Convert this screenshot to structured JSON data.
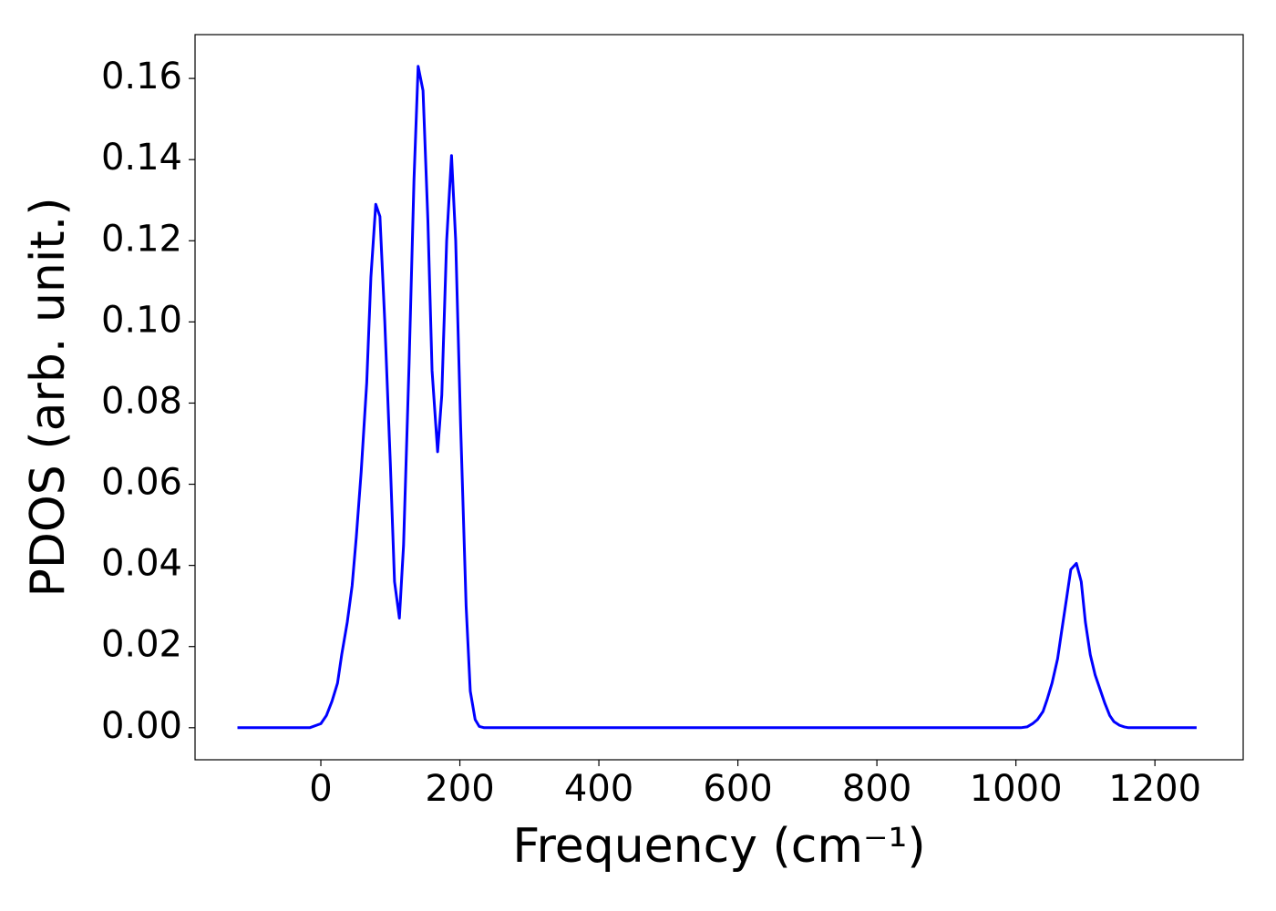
{
  "chart_data": {
    "type": "line",
    "xlabel": "Frequency (cm⁻¹)",
    "ylabel": "PDOS (arb. unit.)",
    "x": [
      -120,
      -16,
      0,
      8,
      16,
      24,
      30,
      38,
      45,
      51,
      58,
      66,
      72,
      79,
      85,
      92,
      100,
      106,
      113,
      119,
      127,
      134,
      140,
      147,
      154,
      160,
      168,
      174,
      181,
      188,
      194,
      201,
      209,
      215,
      222,
      228,
      235,
      1007,
      1016,
      1024,
      1031,
      1039,
      1045,
      1052,
      1060,
      1066,
      1073,
      1079,
      1087,
      1094,
      1100,
      1107,
      1114,
      1122,
      1128,
      1135,
      1141,
      1149,
      1156,
      1162,
      1260
    ],
    "series": [
      {
        "name": "PDOS",
        "color": "#0000ff",
        "values": [
          0,
          0,
          0.001,
          0.003,
          0.0065,
          0.011,
          0.018,
          0.026,
          0.035,
          0.047,
          0.063,
          0.085,
          0.111,
          0.129,
          0.126,
          0.1,
          0.065,
          0.036,
          0.027,
          0.045,
          0.09,
          0.135,
          0.163,
          0.157,
          0.125,
          0.088,
          0.068,
          0.082,
          0.12,
          0.141,
          0.12,
          0.075,
          0.03,
          0.009,
          0.002,
          0.0003,
          0,
          0,
          0.0002,
          0.001,
          0.002,
          0.004,
          0.007,
          0.011,
          0.017,
          0.024,
          0.032,
          0.039,
          0.0405,
          0.036,
          0.026,
          0.018,
          0.013,
          0.009,
          0.006,
          0.003,
          0.0015,
          0.0006,
          0.0002,
          0,
          0
        ]
      }
    ],
    "xlim": [
      -181,
      1327
    ],
    "ylim": [
      -0.0079,
      0.1708
    ],
    "xticks": [
      0,
      200,
      400,
      600,
      800,
      1000,
      1200
    ],
    "yticks": [
      {
        "value": 0,
        "label": "0.00"
      },
      {
        "value": 0.02,
        "label": "0.02"
      },
      {
        "value": 0.04,
        "label": "0.04"
      },
      {
        "value": 0.06,
        "label": "0.06"
      },
      {
        "value": 0.08,
        "label": "0.08"
      },
      {
        "value": 0.1,
        "label": "0.10"
      },
      {
        "value": 0.12,
        "label": "0.12"
      },
      {
        "value": 0.14,
        "label": "0.14"
      },
      {
        "value": 0.16,
        "label": "0.16"
      }
    ],
    "grid": false
  }
}
